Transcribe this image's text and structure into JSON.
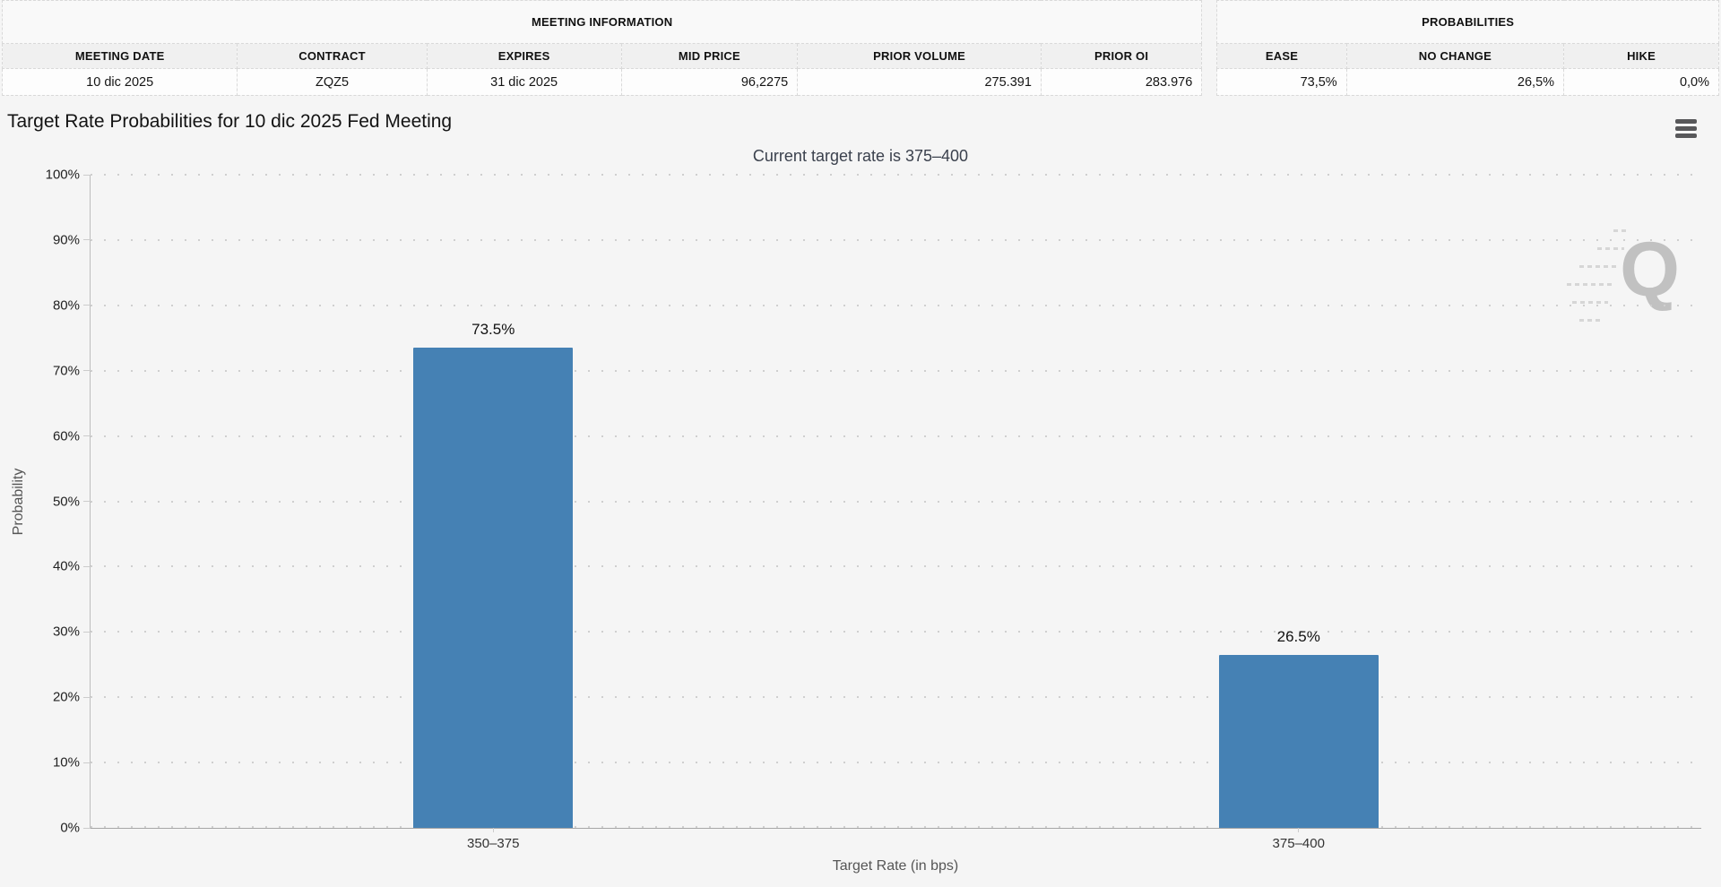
{
  "meeting_information": {
    "title": "MEETING INFORMATION",
    "columns": [
      "MEETING DATE",
      "CONTRACT",
      "EXPIRES",
      "MID PRICE",
      "PRIOR VOLUME",
      "PRIOR OI"
    ],
    "values": [
      "10 dic 2025",
      "ZQZ5",
      "31 dic 2025",
      "96,2275",
      "275.391",
      "283.976"
    ]
  },
  "probabilities": {
    "title": "PROBABILITIES",
    "columns": [
      "EASE",
      "NO CHANGE",
      "HIKE"
    ],
    "values": [
      "73,5%",
      "26,5%",
      "0,0%"
    ]
  },
  "chart": {
    "title": "Target Rate Probabilities for 10 dic 2025 Fed Meeting",
    "subtitle": "Current target rate is 375–400",
    "watermark_letter": "Q",
    "menu_icon": "hamburger-icon"
  },
  "chart_data": {
    "type": "bar",
    "title": "Target Rate Probabilities for 10 dic 2025 Fed Meeting",
    "subtitle": "Current target rate is 375–400",
    "categories": [
      "350–375",
      "375–400"
    ],
    "values": [
      73.5,
      26.5
    ],
    "bar_labels": [
      "73.5%",
      "26.5%"
    ],
    "xlabel": "Target Rate (in bps)",
    "ylabel": "Probability",
    "ylim": [
      0,
      100
    ],
    "ytick_step": 10,
    "ytick_suffix": "%",
    "grid": "horizontal-dotted",
    "legend": "none",
    "bar_color": "#4581B4",
    "background_color": "#f5f5f5"
  }
}
